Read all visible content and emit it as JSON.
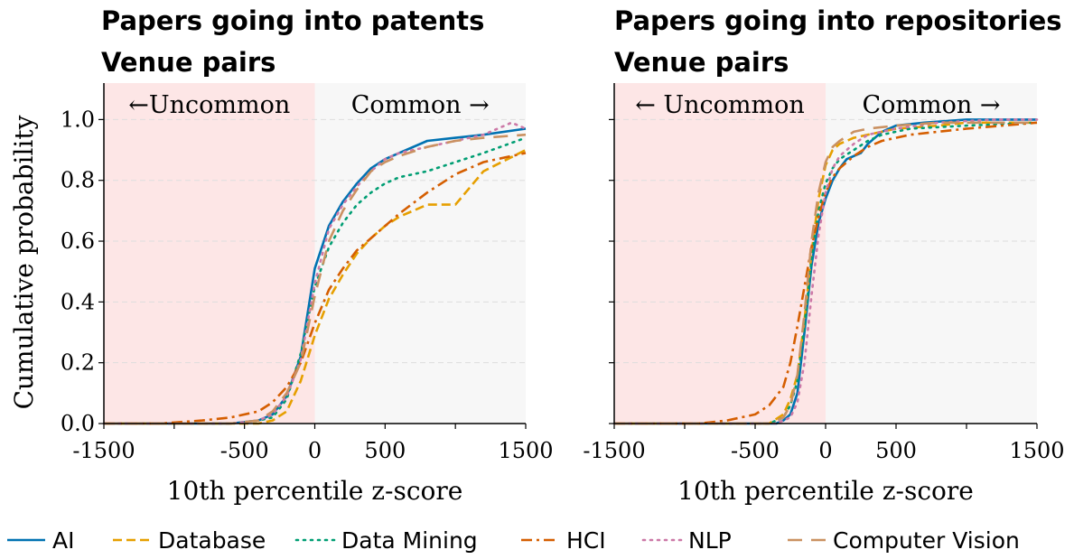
{
  "legend": [
    {
      "name": "AI",
      "color": "#0072b2",
      "dash": "solid"
    },
    {
      "name": "Database",
      "color": "#e69f00",
      "dash": "dashed"
    },
    {
      "name": "Data Mining",
      "color": "#009e73",
      "dash": "dotted"
    },
    {
      "name": "HCI",
      "color": "#d55e00",
      "dash": "dashdot"
    },
    {
      "name": "NLP",
      "color": "#cc79a7",
      "dash": "dotted"
    },
    {
      "name": "Computer Vision",
      "color": "#ca9161",
      "dash": "loosedash"
    }
  ],
  "colors": {
    "uncommon_region": "#fde6e6",
    "common_region": "#f7f7f7"
  },
  "chart_data": [
    {
      "type": "line",
      "title": "Papers going into patents",
      "subtitle": "Venue pairs",
      "xlabel": "10th percentile z-score",
      "ylabel": "Cumulative probability",
      "xlim": [
        -1500,
        1500
      ],
      "ylim": [
        0,
        1.12
      ],
      "xticks": [
        -1500,
        -500,
        0,
        500,
        1500
      ],
      "xtick_labels": [
        "-1500",
        "-500",
        "0",
        "500",
        "1500"
      ],
      "yticks": [
        0.0,
        0.2,
        0.4,
        0.6,
        0.8,
        1.0
      ],
      "ytick_labels": [
        "0.0",
        "0.2",
        "0.4",
        "0.6",
        "0.8",
        "1.0"
      ],
      "regions": [
        {
          "label": "←Uncommon",
          "from": -1500,
          "to": 0
        },
        {
          "label": "Common →",
          "from": 0,
          "to": 1500
        }
      ],
      "grid": "horizontal dashed",
      "series": [
        {
          "name": "AI",
          "x": [
            -1500,
            -600,
            -400,
            -300,
            -200,
            -100,
            0,
            100,
            200,
            300,
            400,
            500,
            600,
            800,
            1000,
            1200,
            1500
          ],
          "y": [
            0,
            0,
            0.01,
            0.03,
            0.09,
            0.22,
            0.51,
            0.65,
            0.73,
            0.79,
            0.84,
            0.87,
            0.89,
            0.93,
            0.94,
            0.95,
            0.97
          ]
        },
        {
          "name": "Database",
          "x": [
            -1500,
            -600,
            -400,
            -300,
            -200,
            -100,
            0,
            100,
            200,
            300,
            400,
            500,
            600,
            800,
            1000,
            1200,
            1500
          ],
          "y": [
            0,
            0,
            0,
            0.01,
            0.04,
            0.14,
            0.29,
            0.41,
            0.49,
            0.56,
            0.61,
            0.65,
            0.68,
            0.72,
            0.72,
            0.83,
            0.9
          ]
        },
        {
          "name": "Data Mining",
          "x": [
            -1500,
            -600,
            -400,
            -300,
            -200,
            -100,
            0,
            100,
            200,
            300,
            400,
            500,
            600,
            800,
            1000,
            1200,
            1500
          ],
          "y": [
            0,
            0,
            0.01,
            0.02,
            0.08,
            0.23,
            0.45,
            0.58,
            0.66,
            0.72,
            0.76,
            0.79,
            0.81,
            0.83,
            0.86,
            0.89,
            0.94
          ]
        },
        {
          "name": "HCI",
          "x": [
            -1500,
            -1100,
            -800,
            -600,
            -400,
            -300,
            -200,
            -100,
            0,
            100,
            200,
            300,
            400,
            500,
            600,
            800,
            1000,
            1200,
            1500
          ],
          "y": [
            0,
            0,
            0.01,
            0.02,
            0.04,
            0.07,
            0.12,
            0.2,
            0.33,
            0.44,
            0.51,
            0.57,
            0.61,
            0.65,
            0.69,
            0.76,
            0.82,
            0.86,
            0.89
          ]
        },
        {
          "name": "NLP",
          "x": [
            -1500,
            -600,
            -400,
            -300,
            -200,
            -100,
            0,
            100,
            200,
            300,
            400,
            500,
            600,
            800,
            1000,
            1200,
            1400,
            1500
          ],
          "y": [
            0,
            0,
            0.01,
            0.03,
            0.09,
            0.21,
            0.46,
            0.64,
            0.72,
            0.78,
            0.83,
            0.87,
            0.89,
            0.91,
            0.93,
            0.95,
            0.99,
            0.97
          ]
        },
        {
          "name": "Computer Vision",
          "x": [
            -1500,
            -600,
            -400,
            -300,
            -200,
            -100,
            0,
            100,
            200,
            300,
            400,
            500,
            600,
            800,
            1000,
            1200,
            1500
          ],
          "y": [
            0,
            0,
            0.01,
            0.04,
            0.1,
            0.2,
            0.42,
            0.6,
            0.7,
            0.77,
            0.83,
            0.86,
            0.88,
            0.91,
            0.93,
            0.94,
            0.95
          ]
        }
      ]
    },
    {
      "type": "line",
      "title": "Papers going into repositories",
      "subtitle": "Venue pairs",
      "xlabel": "10th percentile z-score",
      "ylabel": "",
      "xlim": [
        -1500,
        1500
      ],
      "ylim": [
        0,
        1.12
      ],
      "xticks": [
        -1500,
        -500,
        0,
        500,
        1500
      ],
      "xtick_labels": [
        "-1500",
        "-500",
        "0",
        "500",
        "1500"
      ],
      "yticks": [
        0.0,
        0.2,
        0.4,
        0.6,
        0.8,
        1.0
      ],
      "ytick_labels": [
        "",
        "",
        "",
        "",
        "",
        ""
      ],
      "regions": [
        {
          "label": "← Uncommon",
          "from": -1500,
          "to": 0
        },
        {
          "label": "Common →",
          "from": 0,
          "to": 1500
        }
      ],
      "grid": "horizontal dashed",
      "series": [
        {
          "name": "AI",
          "x": [
            -1500,
            -350,
            -300,
            -250,
            -200,
            -150,
            -100,
            -50,
            0,
            50,
            100,
            150,
            200,
            250,
            300,
            400,
            500,
            700,
            1000,
            1500
          ],
          "y": [
            0,
            0,
            0.01,
            0.03,
            0.1,
            0.3,
            0.52,
            0.66,
            0.74,
            0.8,
            0.84,
            0.87,
            0.88,
            0.89,
            0.92,
            0.96,
            0.98,
            0.99,
            1.0,
            1.0
          ]
        },
        {
          "name": "Database",
          "x": [
            -1500,
            -400,
            -300,
            -250,
            -200,
            -150,
            -100,
            -50,
            0,
            50,
            100,
            200,
            300,
            500,
            800,
            1000,
            1500
          ],
          "y": [
            0,
            0,
            0.03,
            0.08,
            0.16,
            0.34,
            0.56,
            0.74,
            0.85,
            0.9,
            0.92,
            0.94,
            0.95,
            0.97,
            0.98,
            0.99,
            0.99
          ]
        },
        {
          "name": "Data Mining",
          "x": [
            -1500,
            -400,
            -300,
            -250,
            -200,
            -150,
            -100,
            -50,
            0,
            50,
            100,
            200,
            300,
            400,
            600,
            1000,
            1500
          ],
          "y": [
            0,
            0,
            0.02,
            0.06,
            0.14,
            0.32,
            0.54,
            0.7,
            0.79,
            0.84,
            0.87,
            0.9,
            0.93,
            0.95,
            0.97,
            0.98,
            0.99
          ]
        },
        {
          "name": "HCI",
          "x": [
            -1500,
            -900,
            -700,
            -500,
            -400,
            -300,
            -250,
            -200,
            -150,
            -100,
            -50,
            0,
            50,
            100,
            200,
            300,
            400,
            600,
            1000,
            1500
          ],
          "y": [
            0,
            0,
            0.01,
            0.03,
            0.06,
            0.12,
            0.2,
            0.32,
            0.45,
            0.58,
            0.68,
            0.76,
            0.81,
            0.84,
            0.88,
            0.91,
            0.93,
            0.95,
            0.97,
            0.99
          ]
        },
        {
          "name": "NLP",
          "x": [
            -1500,
            -350,
            -250,
            -200,
            -150,
            -100,
            -50,
            0,
            50,
            100,
            200,
            300,
            500,
            800,
            1200,
            1500
          ],
          "y": [
            0,
            0,
            0.02,
            0.07,
            0.2,
            0.42,
            0.62,
            0.76,
            0.84,
            0.88,
            0.92,
            0.95,
            0.97,
            0.99,
            1.0,
            1.0
          ]
        },
        {
          "name": "Computer Vision",
          "x": [
            -1500,
            -400,
            -300,
            -250,
            -200,
            -150,
            -100,
            -50,
            0,
            50,
            100,
            200,
            300,
            500,
            800,
            1000,
            1500
          ],
          "y": [
            0,
            0,
            0.02,
            0.06,
            0.16,
            0.36,
            0.6,
            0.76,
            0.86,
            0.91,
            0.93,
            0.96,
            0.97,
            0.98,
            0.99,
            0.99,
            0.99
          ]
        }
      ]
    }
  ]
}
